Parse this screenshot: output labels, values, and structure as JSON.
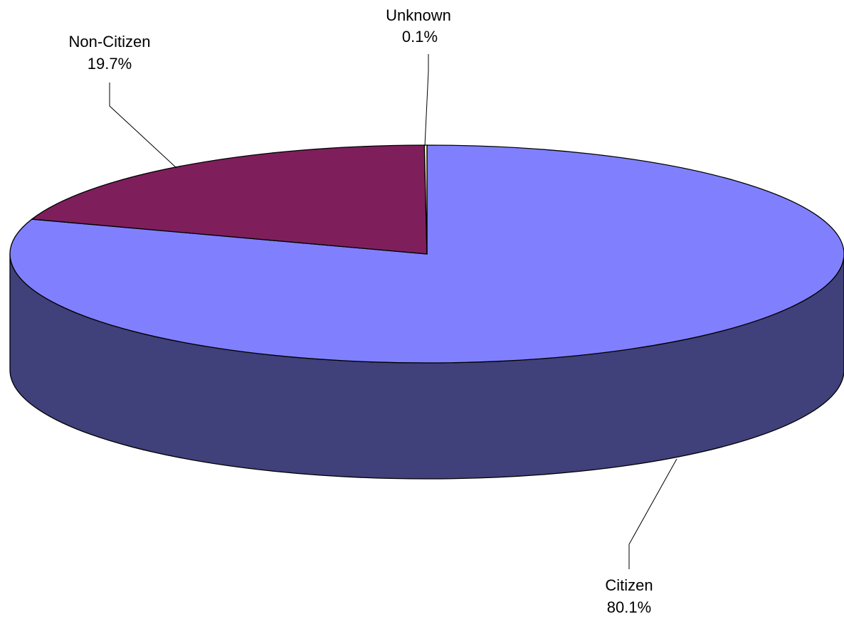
{
  "chart_data": {
    "type": "pie",
    "style": "3d",
    "categories": [
      "Citizen",
      "Non-Citizen",
      "Unknown"
    ],
    "values": [
      80.1,
      19.7,
      0.1
    ],
    "labels": [
      {
        "name": "Citizen",
        "value_text": "80.1%"
      },
      {
        "name": "Non-Citizen",
        "value_text": "19.7%"
      },
      {
        "name": "Unknown",
        "value_text": "0.1%"
      }
    ],
    "colors": {
      "Citizen": "#8080FF",
      "Citizen_side": "#40407A",
      "Non-Citizen": "#7E1F5C",
      "Unknown": "#FFFFC0"
    },
    "legend": "none"
  }
}
